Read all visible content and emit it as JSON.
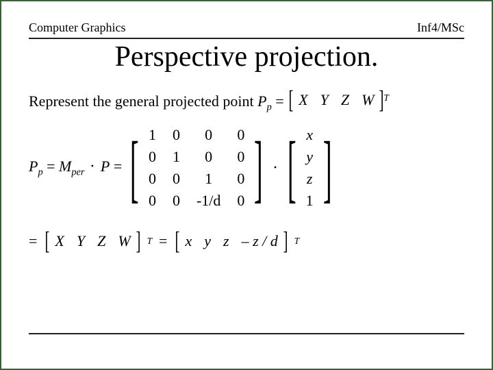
{
  "header": {
    "left": "Computer Graphics",
    "right": "Inf4/MSc"
  },
  "title": "Perspective projection.",
  "line1": {
    "prefix": "Represent the general projected point ",
    "lhs_var": "P",
    "lhs_sub": "p",
    "eq": " = ",
    "vec": [
      "X",
      "Y",
      "Z",
      "W"
    ],
    "transpose": "T"
  },
  "equation": {
    "lhs_var": "P",
    "lhs_sub": "p",
    "eq1": " = ",
    "mvar": "M",
    "msub": "per",
    "dot": " · ",
    "pvar": "P",
    "eq2": " = ",
    "matrix": [
      [
        "1",
        "0",
        "0",
        "0"
      ],
      [
        "0",
        "1",
        "0",
        "0"
      ],
      [
        "0",
        "0",
        "1",
        "0"
      ],
      [
        "0",
        "0",
        "-1/d",
        "0"
      ]
    ],
    "vector": [
      "x",
      "y",
      "z",
      "1"
    ]
  },
  "line3": {
    "eq1": "= ",
    "vec1": [
      "X",
      "Y",
      "Z",
      "W"
    ],
    "t1": "T",
    "eq2": " = ",
    "vec2": [
      "x",
      "y",
      "z",
      "– z / d"
    ],
    "t2": "T"
  },
  "style": {
    "border_color": "#3a5f3a",
    "rule_color": "#222222",
    "font_family": "Times New Roman",
    "title_fontsize": 42,
    "body_fontsize": 22,
    "header_fontsize": 18
  }
}
